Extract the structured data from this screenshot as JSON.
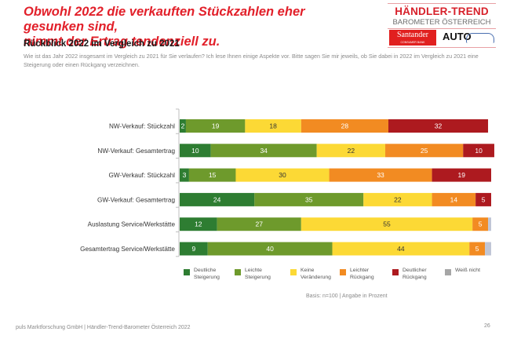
{
  "headline": {
    "line1": "Obwohl 2022 die verkauften Stückzahlen eher gesunken sind,",
    "line2": "nimmt der Ertrag tendenziell zu."
  },
  "logo": {
    "title": "HÄNDLER-TREND",
    "subtitle": "BAROMETER ÖSTERREICH",
    "sponsor1": "Santander",
    "sponsor1_sub": "CONSUMER BANK",
    "sponsor2": "AUTO"
  },
  "subtitle": "Rückblick 2022 im Vergleich zu 2021",
  "question": "Wie ist das Jahr 2022 insgesamt im Vergleich zu 2021 für Sie verlaufen? Ich lese Ihnen einige Aspekte vor. Bitte sagen Sie mir jeweils, ob Sie dabei in 2022 im Vergleich zu 2021 eine Steigerung oder einen Rückgang verzeichnen.",
  "chart_data": {
    "type": "bar",
    "orientation": "horizontal",
    "stacked": true,
    "title": "Rückblick 2022 im Vergleich zu 2021",
    "xlabel": "",
    "ylabel": "",
    "xlim": [
      0,
      100
    ],
    "grid": false,
    "legend_position": "bottom",
    "categories": [
      "NW-Verkauf: Stückzahl",
      "NW-Verkauf: Gesamtertrag",
      "GW-Verkauf: Stückzahl",
      "GW-Verkauf: Gesamtertrag",
      "Auslastung Service/Werkstätte",
      "Gesamtertrag Service/Werkstätte"
    ],
    "series": [
      {
        "name": "Deutliche Steigerung",
        "color": "#2e7d32",
        "label_color": "#ffffff",
        "values": [
          2,
          10,
          3,
          24,
          12,
          9
        ]
      },
      {
        "name": "Leichte Steigerung",
        "color": "#6e9a2c",
        "label_color": "#ffffff",
        "values": [
          19,
          34,
          15,
          35,
          27,
          40
        ]
      },
      {
        "name": "Keine Veränderung",
        "color": "#fcd935",
        "label_color": "#333333",
        "values": [
          18,
          22,
          30,
          22,
          55,
          44
        ]
      },
      {
        "name": "Leichter Rückgang",
        "color": "#f28b22",
        "label_color": "#ffffff",
        "values": [
          28,
          25,
          33,
          14,
          5,
          5
        ]
      },
      {
        "name": "Deutlicher Rückgang",
        "color": "#ad1a1f",
        "label_color": "#ffffff",
        "values": [
          32,
          10,
          19,
          5,
          0,
          0
        ]
      },
      {
        "name": "Weiß nicht",
        "color": "#c0c6d6",
        "label_color": "#ffffff",
        "values": [
          0,
          0,
          0,
          0,
          1,
          2
        ]
      }
    ],
    "legend_labels": [
      [
        "Deutliche",
        "Steigerung"
      ],
      [
        "Leichte",
        "Steigerung"
      ],
      [
        "Keine",
        "Veränderung"
      ],
      [
        "Leichter",
        "Rückgang"
      ],
      [
        "Deutlicher",
        "Rückgang"
      ],
      [
        "Weiß nicht",
        ""
      ]
    ],
    "legend_swatch_colors": [
      "#2e7d32",
      "#6e9a2c",
      "#fcd935",
      "#f28b22",
      "#ad1a1f",
      "#a6a6a6"
    ]
  },
  "basis": "Basis: n=100 | Angabe in Prozent",
  "footer": "puls Marktforschung GmbH | Händler-Trend-Barometer Österreich 2022",
  "page_number": "26"
}
